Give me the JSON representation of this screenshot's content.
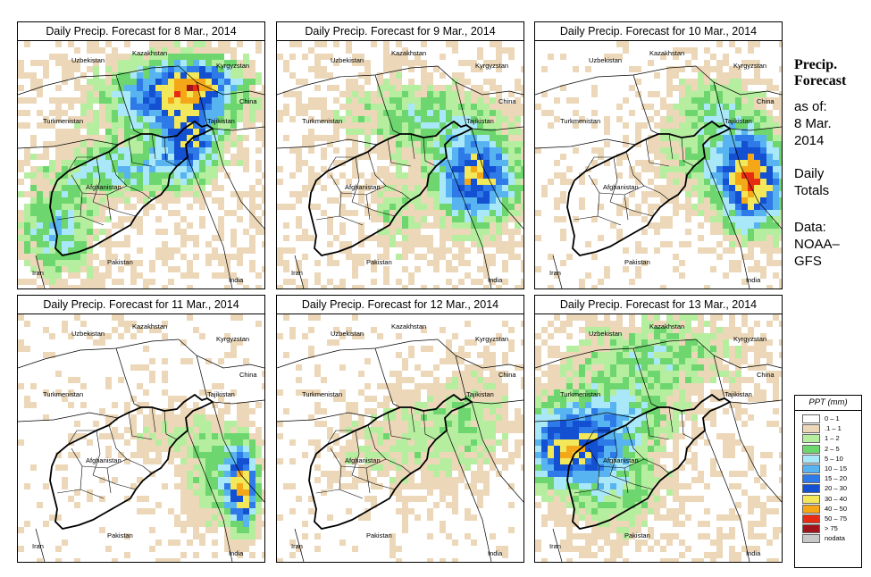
{
  "panels": [
    {
      "title": "Daily Precip. Forecast for  8 Mar., 2014",
      "pattern": "north-east-band"
    },
    {
      "title": "Daily Precip. Forecast for  9 Mar., 2014",
      "pattern": "east-cluster"
    },
    {
      "title": "Daily Precip. Forecast for  10 Mar., 2014",
      "pattern": "east-red-core"
    },
    {
      "title": "Daily Precip. Forecast for  11 Mar., 2014",
      "pattern": "south-east-strip"
    },
    {
      "title": "Daily Precip. Forecast for  12 Mar., 2014",
      "pattern": "sparse-light"
    },
    {
      "title": "Daily Precip. Forecast for  13 Mar., 2014",
      "pattern": "west-heavy"
    }
  ],
  "country_labels": {
    "uzbekistan": "Uzbekistan",
    "kazakhstan": "Kazakhstan",
    "kyrgyzstan": "Kyrgyzstan",
    "turkmenistan": "Turkmenistan",
    "tajikistan": "Tajikistan",
    "china": "China",
    "afghanistan": "Afghanistan",
    "pakistan": "Pakistan",
    "iran": "Iran",
    "india": "India"
  },
  "sidebar": {
    "title_line1": "Precip.",
    "title_line2": "Forecast",
    "asof_line1": "as of:",
    "asof_line2": "8 Mar.",
    "asof_line3": "2014",
    "totals_line1": "Daily",
    "totals_line2": "Totals",
    "source_line1": "Data:",
    "source_line2": "NOAA–",
    "source_line3": "GFS"
  },
  "legend": {
    "title": "PPT (mm)",
    "items": [
      {
        "label": "0 – 1",
        "color": "#ffffff"
      },
      {
        "label": ".1 – 1",
        "color": "#ecd8b8"
      },
      {
        "label": "1 – 2",
        "color": "#b6eea0"
      },
      {
        "label": "2 – 5",
        "color": "#6ed66e"
      },
      {
        "label": "5 – 10",
        "color": "#a8e8f8"
      },
      {
        "label": "10 – 15",
        "color": "#58b4f0"
      },
      {
        "label": "15 – 20",
        "color": "#2e7ae8"
      },
      {
        "label": "20 – 30",
        "color": "#1450d2"
      },
      {
        "label": "30 – 40",
        "color": "#f2e85a"
      },
      {
        "label": "40 – 50",
        "color": "#f4a818"
      },
      {
        "label": "50 – 75",
        "color": "#e82c14"
      },
      {
        "label": "> 75",
        "color": "#a0141c"
      },
      {
        "label": "nodata",
        "color": "#c8c8c8"
      }
    ]
  }
}
